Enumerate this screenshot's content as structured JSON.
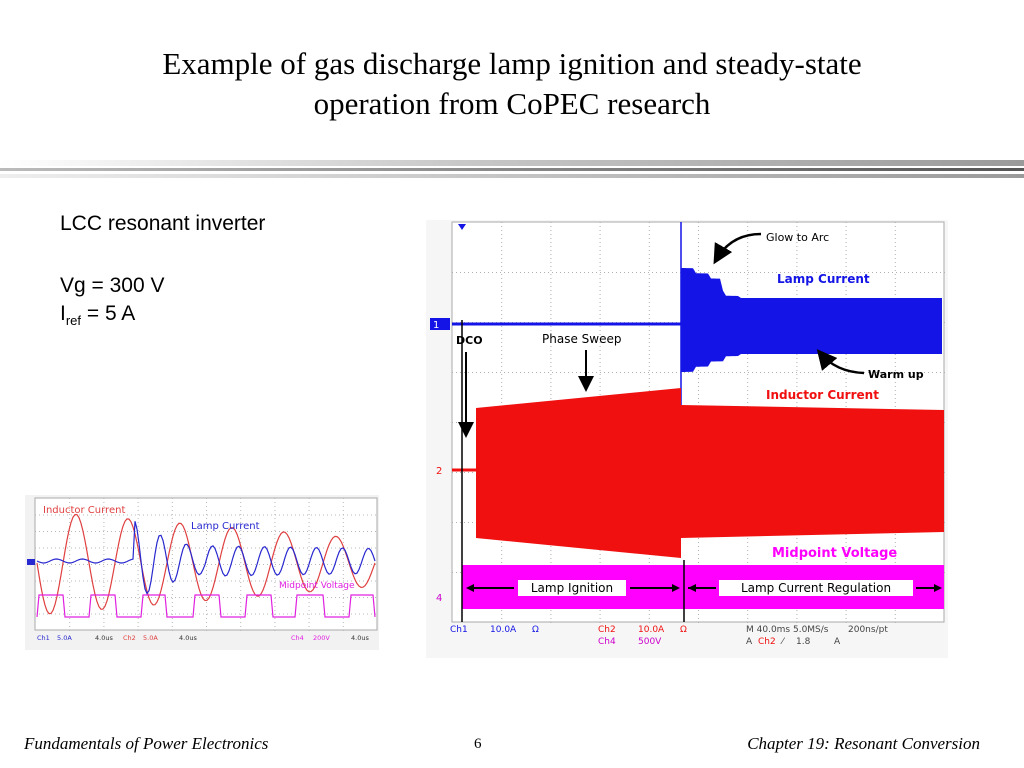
{
  "slide": {
    "title_line1": "Example of gas discharge lamp ignition and steady-state",
    "title_line2": "operation from CoPEC research",
    "params": {
      "topology": "LCC resonant inverter",
      "vg": "Vg = 300 V",
      "iref_main": "I",
      "iref_sub": "ref",
      "iref_value": " = 5 A"
    },
    "footer": {
      "left": "Fundamentals of Power Electronics",
      "page": "6",
      "right": "Chapter 19:  Resonant Conversion"
    }
  },
  "main_scope": {
    "annotations": {
      "glow_to_arc": "Glow to Arc",
      "lamp_current": "Lamp Current",
      "warm_up": "Warm up",
      "inductor_current": "Inductor Current",
      "dco": "DCO",
      "phase_sweep": "Phase Sweep",
      "midpoint_voltage": "Midpoint Voltage",
      "lamp_ignition": "Lamp Ignition",
      "lamp_current_regulation": "Lamp Current Regulation"
    },
    "channel_markers": {
      "ch1": "1",
      "ch2": "2",
      "ch4": "4"
    },
    "readout": {
      "ch1": "Ch1",
      "ch1_scale": "10.0A",
      "ch1_unit": "Ω",
      "ch2": "Ch2",
      "ch2_scale": "10.0A",
      "ch2_unit": "Ω",
      "ch4": "Ch4",
      "ch4_scale": "500V",
      "timebase": "M 40.0ms 5.0MS/s",
      "resolution": "200ns/pt",
      "trig_a": "A",
      "trig_ch": "Ch2",
      "trig_slope": "⁄",
      "trig_level": "1.8",
      "trig_unit": "A"
    },
    "colors": {
      "lamp_current": "#1414e6",
      "inductor_current": "#f01010",
      "midpoint_voltage": "#ff00ff",
      "grid": "#b0b0b0"
    }
  },
  "inset_scope": {
    "labels": {
      "inductor_current": "Inductor Current",
      "lamp_current": "Lamp Current",
      "midpoint_voltage": "Midpoint Voltage"
    },
    "readout": {
      "ch1": "Ch1",
      "ch1_scale": "5.0A",
      "ch1_time": "4.0us",
      "ch2": "Ch2",
      "ch2_scale": "5.0A",
      "ch2_time": "4.0us",
      "ch4": "Ch4",
      "ch4_scale": "200V",
      "ch4_time": "4.0us"
    },
    "colors": {
      "inductor_current": "#e04040",
      "lamp_current": "#2828d0",
      "midpoint_voltage": "#e020e0"
    }
  }
}
